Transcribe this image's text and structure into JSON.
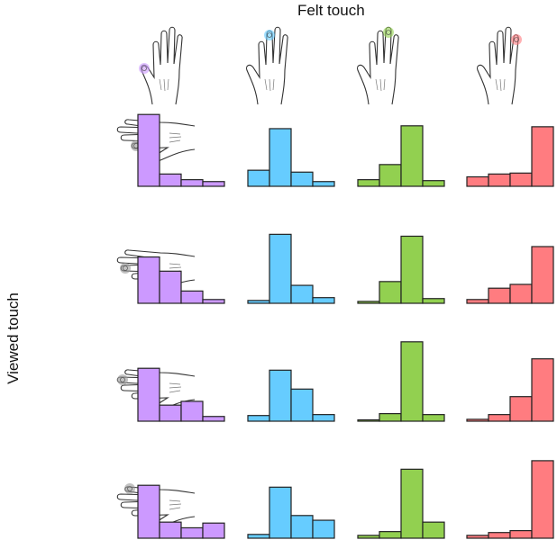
{
  "chart_data": {
    "type": "bar",
    "layout": "4x4 grid of small histograms",
    "col_label": "Felt touch",
    "row_label": "Viewed touch",
    "ylim": [
      0,
      1
    ],
    "grid": false,
    "axes_shown": false,
    "colors": [
      "#cc99ff",
      "#66ccff",
      "#92d050",
      "#ff7c80"
    ],
    "columns": [
      "felt-finger-1",
      "felt-finger-2",
      "felt-finger-3",
      "felt-finger-4"
    ],
    "rows": [
      "viewed-finger-1",
      "viewed-finger-2",
      "viewed-finger-3",
      "viewed-finger-4"
    ],
    "panels": [
      [
        [
          0.76,
          0.13,
          0.07,
          0.05
        ],
        [
          0.17,
          0.61,
          0.15,
          0.05
        ],
        [
          0.07,
          0.23,
          0.64,
          0.06
        ],
        [
          0.1,
          0.13,
          0.14,
          0.63
        ]
      ],
      [
        [
          0.49,
          0.34,
          0.13,
          0.04
        ],
        [
          0.03,
          0.73,
          0.19,
          0.06
        ],
        [
          0.02,
          0.23,
          0.71,
          0.05
        ],
        [
          0.04,
          0.16,
          0.2,
          0.6
        ]
      ],
      [
        [
          0.56,
          0.17,
          0.21,
          0.05
        ],
        [
          0.06,
          0.54,
          0.34,
          0.07
        ],
        [
          0.01,
          0.08,
          0.84,
          0.07
        ],
        [
          0.02,
          0.07,
          0.26,
          0.66
        ]
      ],
      [
        [
          0.56,
          0.17,
          0.11,
          0.16
        ],
        [
          0.04,
          0.54,
          0.24,
          0.19
        ],
        [
          0.03,
          0.07,
          0.73,
          0.17
        ],
        [
          0.03,
          0.06,
          0.08,
          0.82
        ]
      ]
    ]
  }
}
